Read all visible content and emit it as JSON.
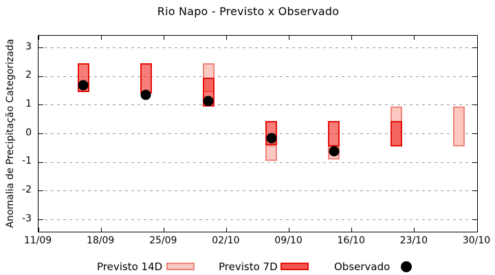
{
  "chart_data": {
    "type": "bar",
    "title": "Rio Napo - Previsto x Observado",
    "ylabel": "Anomalia de Precipitação Categorizada",
    "xlabel": "",
    "ylim": [
      -3.42,
      3.42
    ],
    "yticks": [
      3,
      2,
      1,
      0,
      -1,
      -2,
      -3
    ],
    "xtick_labels": [
      "11/09",
      "18/09",
      "25/09",
      "02/10",
      "09/10",
      "16/10",
      "23/10",
      "30/10"
    ],
    "xtick_interval_days": 7,
    "x_total_days": 49,
    "grid": "horizontal-dashed",
    "legend_position": "bottom",
    "legend": [
      {
        "label": "Previsto 14D",
        "swatch": "pink-box"
      },
      {
        "label": "Previsto 7D",
        "swatch": "red-box"
      },
      {
        "label": "Observado",
        "swatch": "black-dot"
      }
    ],
    "points": [
      {
        "date": "16/09",
        "day": 5,
        "previsto_14d": null,
        "previsto_7d": [
          1.45,
          2.45
        ],
        "observado": 1.7
      },
      {
        "date": "23/09",
        "day": 12,
        "previsto_14d": null,
        "previsto_7d": [
          1.4,
          2.45
        ],
        "observado": 1.35
      },
      {
        "date": "30/09",
        "day": 19,
        "previsto_14d": [
          1.45,
          2.45
        ],
        "previsto_7d": [
          0.95,
          1.95
        ],
        "observado": 1.15
      },
      {
        "date": "07/10",
        "day": 26,
        "previsto_14d": [
          -0.95,
          -0.4
        ],
        "previsto_7d": [
          -0.4,
          0.45
        ],
        "observado": -0.15
      },
      {
        "date": "14/10",
        "day": 33,
        "previsto_14d": [
          -0.9,
          -0.45
        ],
        "previsto_7d": [
          -0.45,
          0.45
        ],
        "observado": -0.6
      },
      {
        "date": "21/10",
        "day": 40,
        "previsto_14d": [
          -0.45,
          0.95
        ],
        "previsto_7d": [
          -0.45,
          0.45
        ],
        "observado": null
      },
      {
        "date": "28/10",
        "day": 47,
        "previsto_14d": [
          -0.45,
          0.95
        ],
        "previsto_7d": null,
        "observado": null
      }
    ],
    "colors": {
      "previsto_14d_fill": "#fbc9c2",
      "previsto_14d_border": "#f0837a",
      "previsto_7d_fill": "#ee120c",
      "previsto_7d_fill_opacity": 0.55,
      "previsto_7d_border": "#e30f08",
      "previsto_7d_on_white": "#f8867f",
      "overlap_shade": "#f5564f",
      "observado": "#000000",
      "grid": "#999999",
      "axis": "#000000",
      "background": "#ffffff"
    }
  }
}
